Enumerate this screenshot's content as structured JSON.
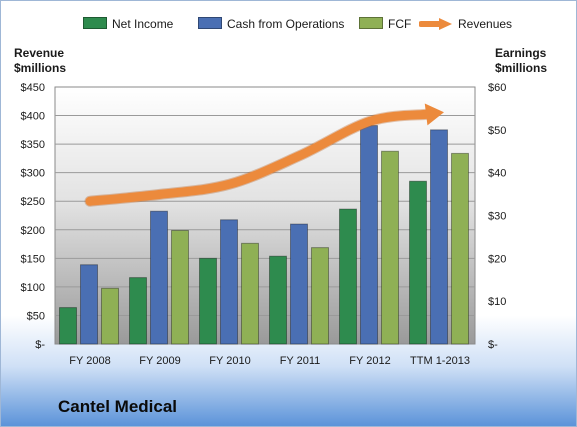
{
  "company": "Cantel Medical",
  "axes": {
    "left_title_line1": "Revenue",
    "left_title_line2": "$millions",
    "right_title_line1": "Earnings",
    "right_title_line2": "$millions"
  },
  "chart_data": {
    "type": "bar",
    "categories": [
      "FY 2008",
      "FY 2009",
      "FY 2010",
      "FY 2011",
      "FY 2012",
      "TTM 1-2013"
    ],
    "left_axis": {
      "min": 0,
      "max": 450,
      "step": 50,
      "tick_labels": [
        "$-",
        "$50",
        "$100",
        "$150",
        "$200",
        "$250",
        "$300",
        "$350",
        "$400",
        "$450"
      ]
    },
    "right_axis": {
      "min": 0,
      "max": 60,
      "step": 10,
      "tick_labels": [
        "$-",
        "$10",
        "$20",
        "$30",
        "$40",
        "$50",
        "$60"
      ]
    },
    "series": [
      {
        "name": "Net Income",
        "axis": "right",
        "render": "bar",
        "color": "#2e8b4e",
        "values": [
          8.5,
          15.5,
          20,
          20.5,
          31.5,
          38
        ]
      },
      {
        "name": "Cash from Operations",
        "axis": "right",
        "render": "bar",
        "color": "#4a6fb3",
        "values": [
          18.5,
          31,
          29,
          28,
          51,
          50
        ]
      },
      {
        "name": "FCF",
        "axis": "right",
        "render": "bar",
        "color": "#8fb055",
        "values": [
          13,
          26.5,
          23.5,
          22.5,
          45,
          44.5
        ]
      },
      {
        "name": "Revenues",
        "axis": "left",
        "render": "arrow-line",
        "color": "#ec8a3c",
        "values": [
          250,
          262,
          280,
          330,
          390,
          405
        ]
      }
    ],
    "grid": true,
    "legend_position": "top"
  }
}
